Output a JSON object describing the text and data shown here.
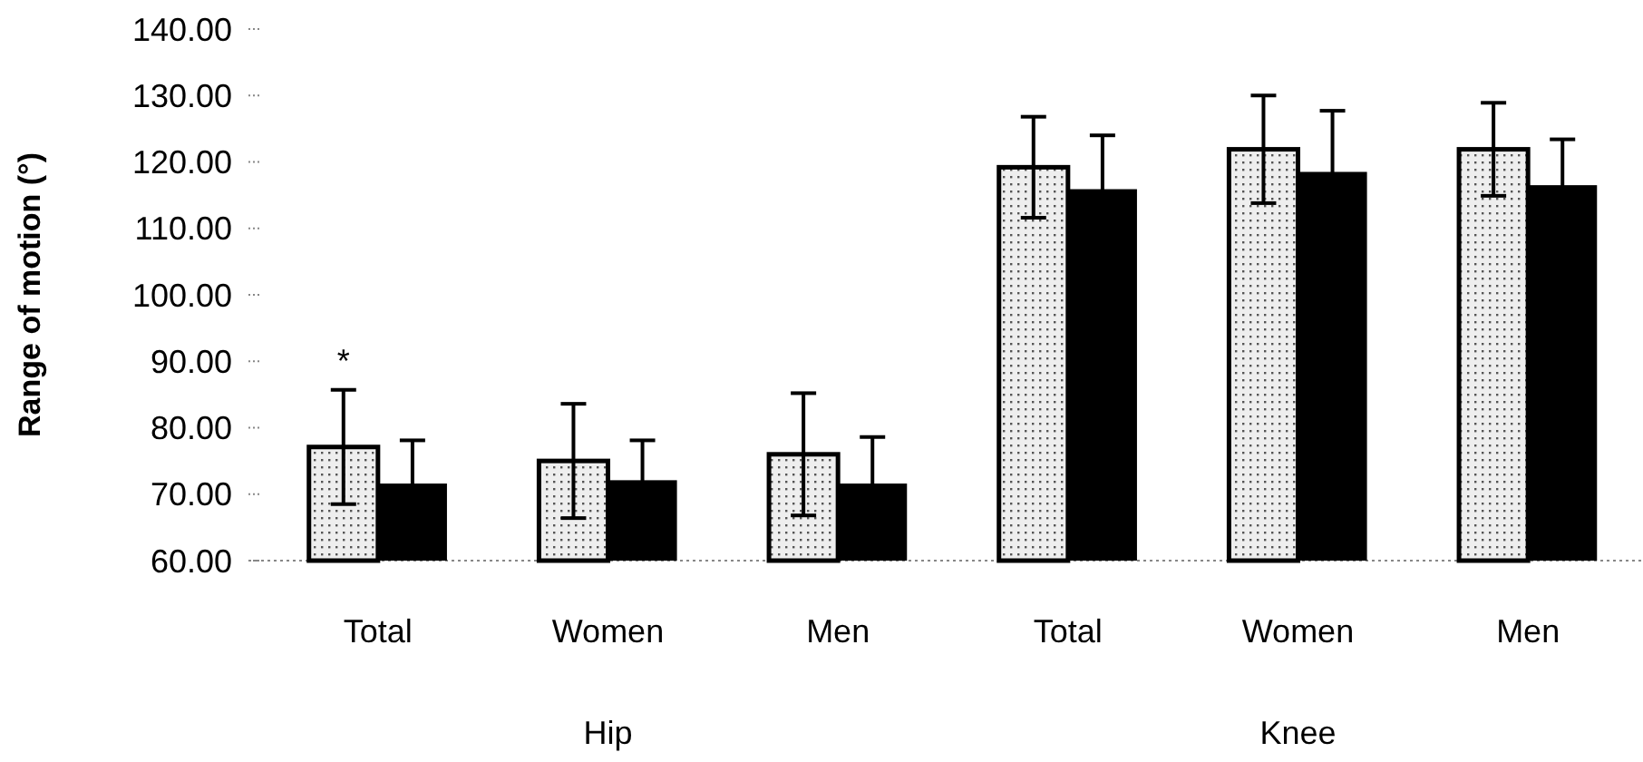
{
  "chart_data": {
    "type": "bar",
    "ylabel": "Range of motion (°)",
    "categories": [
      "Total",
      "Women",
      "Men",
      "Total",
      "Women",
      "Men"
    ],
    "series": [
      {
        "color": "#eeeeee",
        "values": [
          77.1,
          75.0,
          76.0,
          119.2,
          121.9,
          121.9
        ],
        "errors": [
          8.6,
          8.6,
          9.2,
          7.6,
          8.1,
          7.0
        ]
      },
      {
        "color": "#000000",
        "values": [
          71.6,
          72.1,
          71.6,
          115.9,
          118.5,
          116.5
        ],
        "errors": [
          6.5,
          6.0,
          7.0,
          8.1,
          9.2,
          6.9
        ]
      }
    ],
    "ylim": [
      60,
      140
    ],
    "yticks": [
      {
        "value": 60,
        "label": "60.00"
      },
      {
        "value": 70,
        "label": "70.00"
      },
      {
        "value": 80,
        "label": "80.00"
      },
      {
        "value": 90,
        "label": "90.00"
      },
      {
        "value": 100,
        "label": "100.00"
      },
      {
        "value": 110,
        "label": "110.00"
      },
      {
        "value": 120,
        "label": "120.00"
      },
      {
        "value": 130,
        "label": "130.00"
      },
      {
        "value": 140,
        "label": "140.00"
      }
    ],
    "annotations": [
      "*",
      "Hip",
      "Knee"
    ],
    "grid": false
  }
}
